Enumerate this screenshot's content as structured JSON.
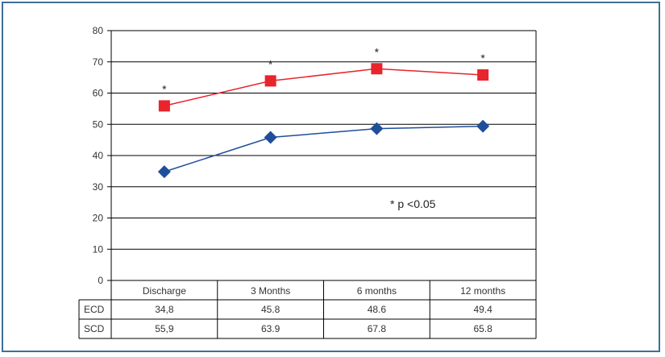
{
  "chart_data": {
    "type": "line",
    "categories": [
      "Discharge",
      "3 Months",
      "6 months",
      "12 months"
    ],
    "series": [
      {
        "name": "ECD",
        "values": [
          34.8,
          45.8,
          48.6,
          49.4
        ],
        "display_values": [
          "34,8",
          "45.8",
          "48.6",
          "49.4"
        ],
        "color": "#1f4e9a",
        "marker": "diamond"
      },
      {
        "name": "SCD",
        "values": [
          55.9,
          63.9,
          67.8,
          65.8
        ],
        "display_values": [
          "55,9",
          "63.9",
          "67.8",
          "65.8"
        ],
        "color": "#e8242c",
        "marker": "square"
      }
    ],
    "ylim": [
      0,
      80
    ],
    "yticks": [
      "0",
      "10",
      "20",
      "30",
      "40",
      "50",
      "60",
      "70",
      "80"
    ],
    "significance_markers": [
      "*",
      "*",
      "*",
      "*"
    ],
    "annotation": "* p <0.05",
    "grid": true
  },
  "colors": {
    "frame_border": "#3f6f9a",
    "grid": "#000000"
  }
}
